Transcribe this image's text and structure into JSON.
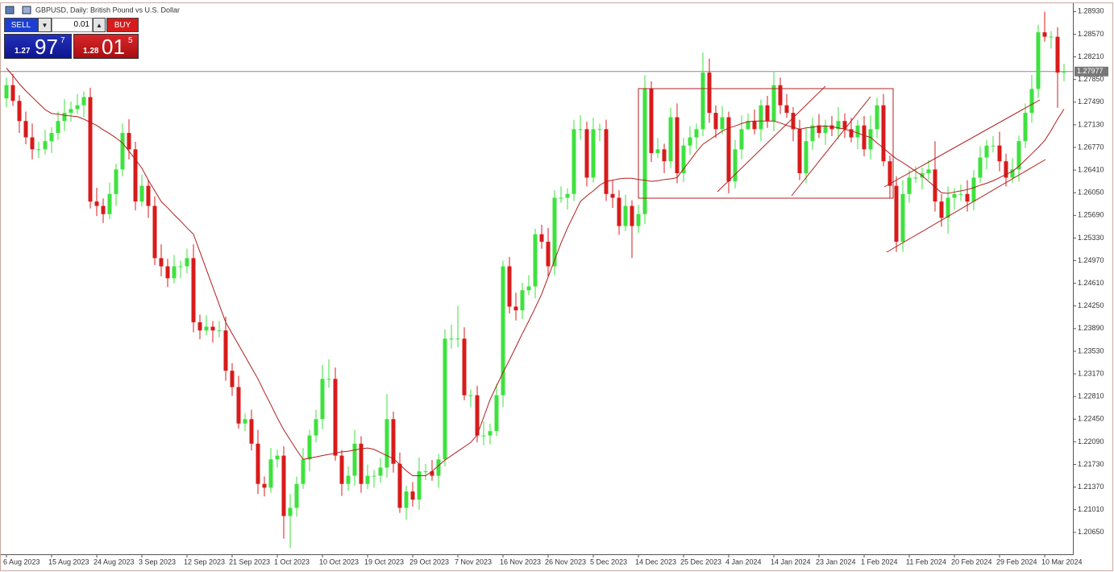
{
  "chart_data": {
    "type": "candlestick",
    "title": "GBPUSD, Daily:  British Pound vs U.S. Dollar",
    "categories": [
      "6 Aug 2023",
      null,
      null,
      null,
      null,
      null,
      null,
      "15 Aug 2023",
      null,
      null,
      null,
      null,
      null,
      null,
      "24 Aug 2023",
      null,
      null,
      null,
      null,
      null,
      null,
      "3 Sep 2023",
      null,
      null,
      null,
      null,
      null,
      null,
      "12 Sep 2023",
      null,
      null,
      null,
      null,
      null,
      null,
      "21 Sep 2023",
      null,
      null,
      null,
      null,
      null,
      null,
      "1 Oct 2023",
      null,
      null,
      null,
      null,
      null,
      null,
      "10 Oct 2023",
      null,
      null,
      null,
      null,
      null,
      null,
      "19 Oct 2023",
      null,
      null,
      null,
      null,
      null,
      null,
      "29 Oct 2023",
      null,
      null,
      null,
      null,
      null,
      null,
      "7 Nov 2023",
      null,
      null,
      null,
      null,
      null,
      null,
      "16 Nov 2023",
      null,
      null,
      null,
      null,
      null,
      null,
      "26 Nov 2023",
      null,
      null,
      null,
      null,
      null,
      null,
      "5 Dec 2023",
      null,
      null,
      null,
      null,
      null,
      null,
      "14 Dec 2023",
      null,
      null,
      null,
      null,
      null,
      null,
      "25 Dec 2023",
      null,
      null,
      null,
      null,
      null,
      null,
      "4 Jan 2024",
      null,
      null,
      null,
      null,
      null,
      null,
      "14 Jan 2024",
      null,
      null,
      null,
      null,
      null,
      null,
      "23 Jan 2024",
      null,
      null,
      null,
      null,
      null,
      null,
      "1 Feb 2024",
      null,
      null,
      null,
      null,
      null,
      null,
      "11 Feb 2024",
      null,
      null,
      null,
      null,
      null,
      null,
      "20 Feb 2024",
      null,
      null,
      null,
      null,
      null,
      null,
      "29 Feb 2024",
      null,
      null,
      null,
      null,
      null,
      null,
      "10 Mar 2024",
      null,
      null,
      null
    ],
    "open": [
      1.2755,
      1.2776,
      1.2751,
      1.2719,
      1.2693,
      1.2674,
      1.2674,
      1.2687,
      1.27,
      1.2719,
      1.2732,
      1.2738,
      1.2744,
      1.2757,
      1.2591,
      1.2584,
      1.2571,
      1.2603,
      1.2642,
      1.27,
      1.2674,
      1.2591,
      1.2616,
      1.2584,
      1.2501,
      1.2488,
      1.2469,
      1.2488,
      1.2488,
      1.2501,
      1.2399,
      1.2386,
      1.2392,
      1.2386,
      1.2386,
      1.2322,
      1.2296,
      1.2238,
      1.2245,
      1.2206,
      1.2142,
      1.2136,
      1.2181,
      1.2187,
      1.2091,
      1.2104,
      1.2142,
      1.2181,
      1.2219,
      1.2245,
      1.2309,
      1.2309,
      1.2187,
      1.2142,
      1.2155,
      1.2206,
      1.2142,
      1.2155,
      1.2155,
      1.2168,
      1.2245,
      1.2174,
      1.2104,
      1.213,
      1.2117,
      1.2162,
      1.2162,
      1.2155,
      1.2181,
      1.2373,
      1.2373,
      1.2373,
      1.2283,
      1.2283,
      1.2219,
      1.2219,
      1.2226,
      1.2283,
      1.2488,
      1.2424,
      1.2418,
      1.245,
      1.2456,
      1.2539,
      1.2527,
      1.2488,
      1.2597,
      1.2597,
      1.2603,
      1.2706,
      1.2706,
      1.2629,
      1.2706,
      1.2706,
      1.2603,
      1.2597,
      1.2552,
      1.2584,
      1.2552,
      1.2571,
      1.277,
      1.2668,
      1.2674,
      1.2655,
      1.2725,
      1.2636,
      1.268,
      1.2693,
      1.2706,
      1.2796,
      1.2732,
      1.2706,
      1.2725,
      1.2623,
      1.2674,
      1.2706,
      1.2719,
      1.2706,
      1.2744,
      1.2719,
      1.2776,
      1.2744,
      1.2732,
      1.2706,
      1.2636,
      1.2687,
      1.2712,
      1.27,
      1.2712,
      1.2706,
      1.2719,
      1.2706,
      1.2693,
      1.2712,
      1.2674,
      1.2706,
      1.2744,
      1.2655,
      1.2616,
      1.2527,
      1.2603,
      1.2629,
      1.2629,
      1.2636,
      1.2642,
      1.2591,
      1.2565,
      1.2597,
      1.2603,
      1.2603,
      1.2591,
      1.2629,
      1.2661,
      1.268,
      1.268,
      1.2655,
      1.2629,
      1.2642,
      1.2687,
      1.2732,
      1.277,
      1.286,
      1.2853,
      1.2853,
      1.2796
    ],
    "high": [
      1.2788,
      1.2794,
      1.276,
      1.2734,
      1.2715,
      1.2686,
      1.2705,
      1.2709,
      1.2734,
      1.2754,
      1.275,
      1.2762,
      1.2766,
      1.2772,
      1.2613,
      1.2596,
      1.2621,
      1.2651,
      1.2715,
      1.2722,
      1.2686,
      1.2634,
      1.2625,
      1.2599,
      1.2523,
      1.25,
      1.2506,
      1.2497,
      1.2516,
      1.2523,
      1.2411,
      1.241,
      1.2401,
      1.2401,
      1.2408,
      1.2334,
      1.2314,
      1.2254,
      1.226,
      1.2228,
      1.2154,
      1.2199,
      1.2196,
      1.2202,
      1.2126,
      1.2154,
      1.2199,
      1.2228,
      1.226,
      1.2331,
      1.234,
      1.2327,
      1.2196,
      1.217,
      1.2228,
      1.2218,
      1.2173,
      1.2164,
      1.2183,
      1.2285,
      1.2257,
      1.2192,
      1.2139,
      1.2145,
      1.2184,
      1.2174,
      1.218,
      1.219,
      1.2388,
      1.2395,
      1.2425,
      1.2391,
      1.2292,
      1.2298,
      1.2241,
      1.2238,
      1.2301,
      1.2497,
      1.2503,
      1.2446,
      1.2462,
      1.2474,
      1.2548,
      1.2554,
      1.2549,
      1.2609,
      1.2615,
      1.2612,
      1.2721,
      1.2728,
      1.2718,
      1.2724,
      1.2715,
      1.2721,
      1.2625,
      1.2609,
      1.2602,
      1.2593,
      1.2586,
      1.2792,
      1.2782,
      1.2692,
      1.2683,
      1.274,
      1.2747,
      1.2692,
      1.2711,
      1.2715,
      1.2828,
      1.2818,
      1.2744,
      1.2743,
      1.2734,
      1.2689,
      1.2728,
      1.2731,
      1.2737,
      1.2753,
      1.2759,
      1.2798,
      1.2788,
      1.2762,
      1.2741,
      1.2721,
      1.2709,
      1.2724,
      1.273,
      1.2721,
      1.2727,
      1.2741,
      1.2731,
      1.2724,
      1.2721,
      1.2727,
      1.2728,
      1.2756,
      1.2762,
      1.2664,
      1.2631,
      1.2625,
      1.2641,
      1.2647,
      1.2645,
      1.2657,
      1.2687,
      1.2603,
      1.2615,
      1.2612,
      1.2618,
      1.2625,
      1.2641,
      1.2679,
      1.2689,
      1.2695,
      1.2702,
      1.2667,
      1.266,
      1.2696,
      1.2747,
      1.2792,
      1.2872,
      1.2893,
      1.2862,
      1.2868,
      1.281
    ],
    "low": [
      1.2741,
      1.2743,
      1.27,
      1.2682,
      1.2658,
      1.266,
      1.2666,
      1.2668,
      1.2689,
      1.2703,
      1.2718,
      1.273,
      1.2725,
      1.258,
      1.2568,
      1.2557,
      1.2563,
      1.2584,
      1.2631,
      1.2658,
      1.2577,
      1.2583,
      1.2565,
      1.249,
      1.2472,
      1.2455,
      1.2461,
      1.2469,
      1.2477,
      1.2383,
      1.2372,
      1.2378,
      1.2367,
      1.2375,
      1.2306,
      1.2282,
      1.223,
      1.2226,
      1.2195,
      1.2126,
      1.2122,
      1.2128,
      1.2168,
      1.2055,
      1.204,
      1.209,
      1.2134,
      1.2162,
      1.2208,
      1.2229,
      1.2295,
      1.2179,
      1.2123,
      1.2131,
      1.2139,
      1.2128,
      1.2134,
      1.2136,
      1.2144,
      1.2152,
      1.216,
      1.2096,
      1.2085,
      1.2106,
      1.2101,
      1.2148,
      1.2147,
      1.2136,
      1.217,
      1.2357,
      1.2359,
      1.2275,
      1.2264,
      1.2208,
      1.2203,
      1.2205,
      1.2218,
      1.2264,
      1.2413,
      1.2402,
      1.2404,
      1.2442,
      1.2437,
      1.2516,
      1.2472,
      1.2474,
      1.2589,
      1.2578,
      1.2592,
      1.269,
      1.2615,
      1.2621,
      1.2687,
      1.2592,
      1.2581,
      1.2538,
      1.2544,
      1.2501,
      1.2541,
      1.2555,
      1.2654,
      1.266,
      1.2636,
      1.2644,
      1.262,
      1.2622,
      1.2665,
      1.2674,
      1.2695,
      1.2716,
      1.2692,
      1.2698,
      1.2604,
      1.2612,
      1.2658,
      1.2705,
      1.2698,
      1.2687,
      1.2708,
      1.2703,
      1.273,
      1.2724,
      1.2687,
      1.2625,
      1.262,
      1.2673,
      1.2692,
      1.2681,
      1.2695,
      1.269,
      1.2692,
      1.2685,
      1.2674,
      1.2663,
      1.2658,
      1.2692,
      1.2647,
      1.2597,
      1.2511,
      1.2511,
      1.2589,
      1.2621,
      1.261,
      1.2625,
      1.2575,
      1.2551,
      1.254,
      1.2578,
      1.2592,
      1.2575,
      1.2577,
      1.2621,
      1.2642,
      1.2669,
      1.2639,
      1.2615,
      1.2621,
      1.2623,
      1.2676,
      1.2716,
      1.2756,
      1.2845,
      1.2834,
      1.274,
      1.2782
    ],
    "close": [
      1.2776,
      1.2751,
      1.2719,
      1.2693,
      1.2674,
      1.2674,
      1.2687,
      1.27,
      1.2719,
      1.2732,
      1.2738,
      1.2744,
      1.2757,
      1.2591,
      1.2584,
      1.2571,
      1.2603,
      1.2642,
      1.27,
      1.2674,
      1.2591,
      1.2616,
      1.2584,
      1.2501,
      1.2488,
      1.2469,
      1.2488,
      1.2488,
      1.2501,
      1.2399,
      1.2386,
      1.2392,
      1.2386,
      1.2386,
      1.2322,
      1.2296,
      1.2238,
      1.2245,
      1.2206,
      1.2142,
      1.2136,
      1.2181,
      1.2187,
      1.2091,
      1.2104,
      1.2142,
      1.2181,
      1.2219,
      1.2245,
      1.2309,
      1.2309,
      1.2187,
      1.2142,
      1.2155,
      1.2206,
      1.2142,
      1.2155,
      1.2155,
      1.2168,
      1.2245,
      1.2174,
      1.2104,
      1.213,
      1.2117,
      1.2162,
      1.2162,
      1.2155,
      1.2181,
      1.2373,
      1.2373,
      1.2373,
      1.2283,
      1.2283,
      1.2219,
      1.2219,
      1.2226,
      1.2283,
      1.2488,
      1.2424,
      1.2418,
      1.245,
      1.2456,
      1.2539,
      1.2527,
      1.2488,
      1.2597,
      1.2597,
      1.2603,
      1.2706,
      1.2706,
      1.2629,
      1.2706,
      1.2706,
      1.2603,
      1.2597,
      1.2552,
      1.2584,
      1.2552,
      1.2571,
      1.277,
      1.2668,
      1.2674,
      1.2655,
      1.2725,
      1.2636,
      1.268,
      1.2693,
      1.2706,
      1.2796,
      1.2732,
      1.2706,
      1.2725,
      1.2623,
      1.2674,
      1.2706,
      1.2719,
      1.2706,
      1.2744,
      1.2719,
      1.2776,
      1.2744,
      1.2732,
      1.2706,
      1.2636,
      1.2687,
      1.2712,
      1.27,
      1.2712,
      1.2706,
      1.2719,
      1.2706,
      1.2693,
      1.2712,
      1.2674,
      1.2706,
      1.2744,
      1.2655,
      1.2616,
      1.2527,
      1.2603,
      1.2629,
      1.2629,
      1.2636,
      1.2642,
      1.2591,
      1.2565,
      1.2597,
      1.2603,
      1.2603,
      1.2591,
      1.2629,
      1.2661,
      1.268,
      1.268,
      1.2655,
      1.2629,
      1.2642,
      1.2687,
      1.2732,
      1.277,
      1.286,
      1.2853,
      1.2853,
      1.2796,
      1.2798
    ],
    "up_color": "#3ee23e",
    "down_color": "#d81b1b",
    "ma": {
      "color": "#b01e1e",
      "values": [
        1.2803,
        1.2791,
        1.2778,
        1.2767,
        1.2757,
        1.2747,
        1.2737,
        1.2731,
        1.273,
        1.2728,
        1.2727,
        1.2726,
        1.2722,
        1.2717,
        1.2712,
        1.2705,
        1.2699,
        1.2692,
        1.2684,
        1.2671,
        1.2658,
        1.2644,
        1.2625,
        1.2608,
        1.2591,
        1.2581,
        1.257,
        1.256,
        1.2549,
        1.2539,
        1.2511,
        1.2483,
        1.2455,
        1.2427,
        1.2399,
        1.2381,
        1.2363,
        1.2345,
        1.2327,
        1.2309,
        1.2288,
        1.2268,
        1.2247,
        1.2228,
        1.2212,
        1.2196,
        1.2181,
        1.2183,
        1.2185,
        1.2187,
        1.2189,
        1.2191,
        1.2193,
        1.2194,
        1.2196,
        1.2198,
        1.2199,
        1.2197,
        1.2192,
        1.2187,
        1.2182,
        1.2173,
        1.2163,
        1.2155,
        1.2155,
        1.2155,
        1.2162,
        1.2171,
        1.218,
        1.2187,
        1.2194,
        1.2201,
        1.2208,
        1.222,
        1.2248,
        1.2276,
        1.2298,
        1.2319,
        1.2339,
        1.236,
        1.2381,
        1.2401,
        1.2422,
        1.2444,
        1.2471,
        1.2498,
        1.2525,
        1.2549,
        1.257,
        1.2591,
        1.26,
        1.2608,
        1.2617,
        1.2623,
        1.2625,
        1.2627,
        1.2628,
        1.2628,
        1.2626,
        1.2625,
        1.2623,
        1.2624,
        1.2626,
        1.2627,
        1.2629,
        1.2643,
        1.2656,
        1.267,
        1.2682,
        1.2689,
        1.2696,
        1.2703,
        1.2708,
        1.2711,
        1.2715,
        1.2718,
        1.2719,
        1.2719,
        1.2719,
        1.2719,
        1.2716,
        1.2712,
        1.2709,
        1.2706,
        1.2708,
        1.2709,
        1.2711,
        1.2711,
        1.271,
        1.2708,
        1.2706,
        1.2703,
        1.27,
        1.2696,
        1.2693,
        1.2684,
        1.2676,
        1.2667,
        1.2659,
        1.2653,
        1.2646,
        1.2639,
        1.2632,
        1.2623,
        1.2614,
        1.2605,
        1.2604,
        1.2606,
        1.2608,
        1.261,
        1.2613,
        1.2617,
        1.262,
        1.2624,
        1.2629,
        1.2634,
        1.2639,
        1.2647,
        1.2657,
        1.2667,
        1.2677,
        1.2688,
        1.2704,
        1.2722,
        1.2738
      ]
    },
    "bid": 1.27977,
    "ylim": [
      1.2034,
      1.2905
    ],
    "yticks": [
      {
        "value": 1.2893,
        "label": "1.28930"
      },
      {
        "value": 1.2857,
        "label": "1.28570"
      },
      {
        "value": 1.2821,
        "label": "1.28210"
      },
      {
        "value": 1.2785,
        "label": "1.27850"
      },
      {
        "value": 1.2749,
        "label": "1.27490"
      },
      {
        "value": 1.2713,
        "label": "1.27130"
      },
      {
        "value": 1.2677,
        "label": "1.26770"
      },
      {
        "value": 1.2641,
        "label": "1.26410"
      },
      {
        "value": 1.2605,
        "label": "1.26050"
      },
      {
        "value": 1.2569,
        "label": "1.25690"
      },
      {
        "value": 1.2533,
        "label": "1.25330"
      },
      {
        "value": 1.2497,
        "label": "1.24970"
      },
      {
        "value": 1.2461,
        "label": "1.24610"
      },
      {
        "value": 1.2425,
        "label": "1.24250"
      },
      {
        "value": 1.2389,
        "label": "1.23890"
      },
      {
        "value": 1.2353,
        "label": "1.23530"
      },
      {
        "value": 1.2317,
        "label": "1.23170"
      },
      {
        "value": 1.2281,
        "label": "1.22810"
      },
      {
        "value": 1.2245,
        "label": "1.22450"
      },
      {
        "value": 1.2209,
        "label": "1.22090"
      },
      {
        "value": 1.2173,
        "label": "1.21730"
      },
      {
        "value": 1.2137,
        "label": "1.21370"
      },
      {
        "value": 1.2101,
        "label": "1.21010"
      },
      {
        "value": 1.2065,
        "label": "1.20650"
      }
    ],
    "grid": false
  },
  "trade_panel": {
    "sell_label": "SELL",
    "buy_label": "BUY",
    "volume": "0.01",
    "sell_price": {
      "prefix": "1.27",
      "pips": "97",
      "fraction": "7"
    },
    "buy_price": {
      "prefix": "1.28",
      "pips": "01",
      "fraction": "5"
    }
  }
}
